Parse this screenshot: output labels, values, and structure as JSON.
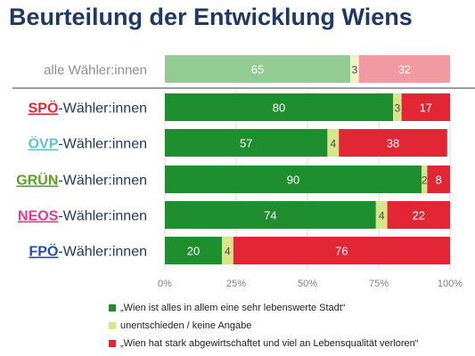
{
  "title": "Beurteilung der Entwicklung Wiens",
  "colors": {
    "positive": "#1e8e2e",
    "neutral": "#d6e58a",
    "negative": "#e32636",
    "positive_light": "#93cc93",
    "neutral_light": "#eef3c8",
    "negative_light": "#f29aa2"
  },
  "chart_data": {
    "type": "bar",
    "orientation": "horizontal",
    "stacked": true,
    "percent_scale": true,
    "categories": [
      {
        "parts": [
          "alle Wähler:innen"
        ],
        "color": "#8f8f8f"
      },
      {
        "parts": [
          "SPÖ",
          "-Wähler:innen"
        ],
        "color": "#e32636"
      },
      {
        "parts": [
          "ÖVP",
          "-Wähler:innen"
        ],
        "color": "#5bc2d8"
      },
      {
        "parts": [
          "GRÜN",
          "-Wähler:innen"
        ],
        "color": "#5aa023"
      },
      {
        "parts": [
          "NEOS",
          "-Wähler:innen"
        ],
        "color": "#e8388a"
      },
      {
        "parts": [
          "FPÖ",
          "-Wähler:innen"
        ],
        "color": "#1f4fa6"
      }
    ],
    "series": [
      {
        "name": "„Wien ist alles in allem eine sehr lebenswerte Stadt“",
        "values": [
          65,
          80,
          57,
          90,
          74,
          20
        ]
      },
      {
        "name": "unentschieden / keine Angabe",
        "values": [
          3,
          3,
          4,
          2,
          4,
          4
        ]
      },
      {
        "name": "„Wien hat stark abgewirtschaftet und viel an Lebensqualität verloren“",
        "values": [
          32,
          17,
          38,
          8,
          22,
          76
        ]
      }
    ],
    "xlim": [
      0,
      100
    ],
    "xticks": [
      "0%",
      "25%",
      "50%",
      "75%",
      "100%"
    ],
    "legend_position": "bottom"
  }
}
